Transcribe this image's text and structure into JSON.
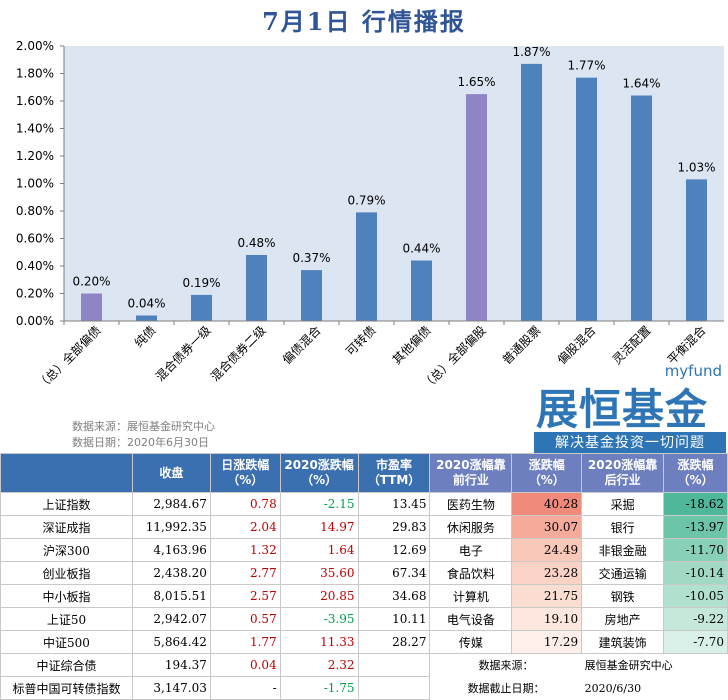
{
  "title": "7月1日 行情播报",
  "chart_data": {
    "type": "bar",
    "categories": [
      "（总）全部偏债",
      "纯债",
      "混合债券一级",
      "混合债券二级",
      "偏债混合",
      "可转债",
      "其他偏债",
      "（总）全部偏股",
      "普通股票",
      "偏股混合",
      "灵活配置",
      "平衡混合"
    ],
    "values": [
      0.2,
      0.04,
      0.19,
      0.48,
      0.37,
      0.79,
      0.44,
      1.65,
      1.87,
      1.77,
      1.64,
      1.03
    ],
    "labels": [
      "0.20%",
      "0.04%",
      "0.19%",
      "0.48%",
      "0.37%",
      "0.79%",
      "0.44%",
      "1.65%",
      "1.87%",
      "1.77%",
      "1.64%",
      "1.03%"
    ],
    "highlight": [
      true,
      false,
      false,
      false,
      false,
      false,
      false,
      true,
      false,
      false,
      false,
      false
    ],
    "yticks": [
      "0.00%",
      "0.20%",
      "0.40%",
      "0.60%",
      "0.80%",
      "1.00%",
      "1.20%",
      "1.40%",
      "1.60%",
      "1.80%",
      "2.00%"
    ],
    "ylim": [
      0,
      2.0
    ],
    "grid": false,
    "colors": {
      "bar": "#4f81bd",
      "highlight": "#8f84c4",
      "plot_bg": "#dce6f2",
      "label": "#000000"
    }
  },
  "source": {
    "line1": "数据来源：展恒基金研究中心",
    "line2": "数据日期：2020年6月30日"
  },
  "logo": {
    "small": "myfund",
    "main": "展恒基金",
    "slogan": "解决基金投资一切问题"
  },
  "table": {
    "headers": [
      "",
      "收盘",
      "日涨跌幅（%）",
      "2020涨跌幅（%）",
      "市盈率（TTM）",
      "2020涨幅靠前行业",
      "涨跌幅（%）",
      "2020涨幅靠后行业",
      "涨跌幅（%）"
    ],
    "rows": [
      {
        "name": "上证指数",
        "close": "2,984.67",
        "day": "0.78",
        "ytd": "-2.15",
        "pe": "13.45",
        "top_ind": "医药生物",
        "top_pct": "40.28",
        "bot_ind": "采掘",
        "bot_pct": "-18.62"
      },
      {
        "name": "深证成指",
        "close": "11,992.35",
        "day": "2.04",
        "ytd": "14.97",
        "pe": "29.83",
        "top_ind": "休闲服务",
        "top_pct": "30.07",
        "bot_ind": "银行",
        "bot_pct": "-13.97"
      },
      {
        "name": "沪深300",
        "close": "4,163.96",
        "day": "1.32",
        "ytd": "1.64",
        "pe": "12.69",
        "top_ind": "电子",
        "top_pct": "24.49",
        "bot_ind": "非银金融",
        "bot_pct": "-11.70"
      },
      {
        "name": "创业板指",
        "close": "2,438.20",
        "day": "2.77",
        "ytd": "35.60",
        "pe": "67.34",
        "top_ind": "食品饮料",
        "top_pct": "23.28",
        "bot_ind": "交通运输",
        "bot_pct": "-10.14"
      },
      {
        "name": "中小板指",
        "close": "8,015.51",
        "day": "2.57",
        "ytd": "20.85",
        "pe": "34.68",
        "top_ind": "计算机",
        "top_pct": "21.75",
        "bot_ind": "钢铁",
        "bot_pct": "-10.05"
      },
      {
        "name": "上证50",
        "close": "2,942.07",
        "day": "0.57",
        "ytd": "-3.95",
        "pe": "10.11",
        "top_ind": "电气设备",
        "top_pct": "19.10",
        "bot_ind": "房地产",
        "bot_pct": "-9.22"
      },
      {
        "name": "中证500",
        "close": "5,864.42",
        "day": "1.77",
        "ytd": "11.33",
        "pe": "28.27",
        "top_ind": "传媒",
        "top_pct": "17.29",
        "bot_ind": "建筑装饰",
        "bot_pct": "-7.70"
      },
      {
        "name": "中证综合债",
        "close": "194.37",
        "day": "0.04",
        "ytd": "2.32",
        "pe": "",
        "foot_label": "数据来源：",
        "foot_value": "展恒基金研究中心"
      },
      {
        "name": "标普中国可转债指数",
        "close": "3,147.03",
        "day": "-",
        "ytd": "-1.75",
        "pe": "",
        "foot_label": "数据截止日期：",
        "foot_value": "2020/6/30"
      }
    ]
  }
}
